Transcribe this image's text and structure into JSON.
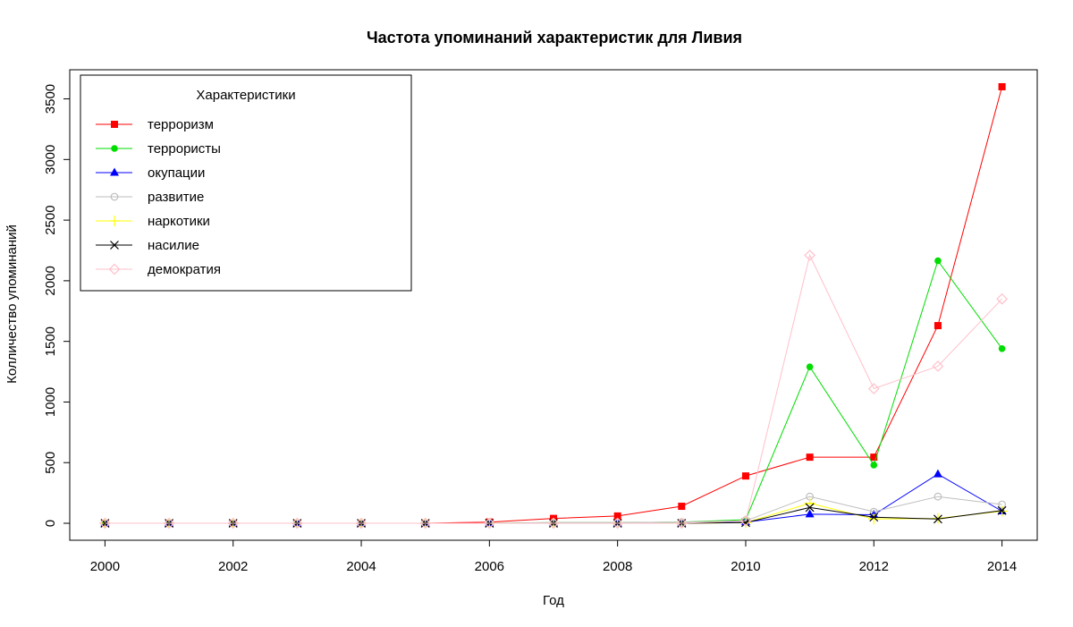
{
  "chart_data": {
    "type": "line",
    "title": "Частота упоминаний характеристик для Ливия",
    "xlabel": "Год",
    "ylabel": "Колличество упоминаний",
    "x": [
      2000,
      2001,
      2002,
      2003,
      2004,
      2005,
      2006,
      2007,
      2008,
      2009,
      2010,
      2011,
      2012,
      2013,
      2014
    ],
    "x_ticks": [
      "2000",
      "2002",
      "2004",
      "2006",
      "2008",
      "2010",
      "2012",
      "2014"
    ],
    "y_ticks": [
      "0",
      "500",
      "1000",
      "1500",
      "2000",
      "2500",
      "3000",
      "3500"
    ],
    "xlim": [
      1999.45,
      2014.55
    ],
    "ylim": [
      -140,
      3740
    ],
    "grid": false,
    "legend": {
      "title": "Характеристики",
      "position": "top-left"
    },
    "series": [
      {
        "name": "терроризм",
        "color": "#ff0000",
        "marker": "square",
        "values": [
          0,
          0,
          0,
          0,
          0,
          0,
          10,
          40,
          60,
          140,
          390,
          545,
          545,
          1630,
          3600
        ]
      },
      {
        "name": "террористы",
        "color": "#00dd00",
        "marker": "circle",
        "values": [
          0,
          0,
          0,
          0,
          0,
          0,
          0,
          5,
          5,
          10,
          30,
          1290,
          480,
          2165,
          1440
        ]
      },
      {
        "name": "окупации",
        "color": "#0000ff",
        "marker": "triangle",
        "values": [
          0,
          0,
          0,
          0,
          0,
          0,
          0,
          0,
          0,
          0,
          10,
          75,
          70,
          405,
          100
        ]
      },
      {
        "name": "развитие",
        "color": "#bebebe",
        "marker": "circle-open",
        "values": [
          0,
          0,
          0,
          0,
          0,
          0,
          0,
          5,
          5,
          10,
          20,
          220,
          95,
          220,
          155
        ]
      },
      {
        "name": "наркотики",
        "color": "#ffff00",
        "marker": "plus",
        "values": [
          0,
          0,
          0,
          0,
          0,
          0,
          0,
          0,
          0,
          0,
          5,
          165,
          35,
          40,
          100
        ]
      },
      {
        "name": "насилие",
        "color": "#000000",
        "marker": "cross",
        "values": [
          0,
          0,
          0,
          0,
          0,
          0,
          0,
          0,
          0,
          0,
          5,
          130,
          50,
          35,
          105
        ]
      },
      {
        "name": "демократия",
        "color": "#ffc0cb",
        "marker": "diamond-open",
        "values": [
          0,
          0,
          0,
          0,
          0,
          0,
          0,
          0,
          0,
          0,
          20,
          2210,
          1110,
          1295,
          1850
        ]
      }
    ]
  }
}
